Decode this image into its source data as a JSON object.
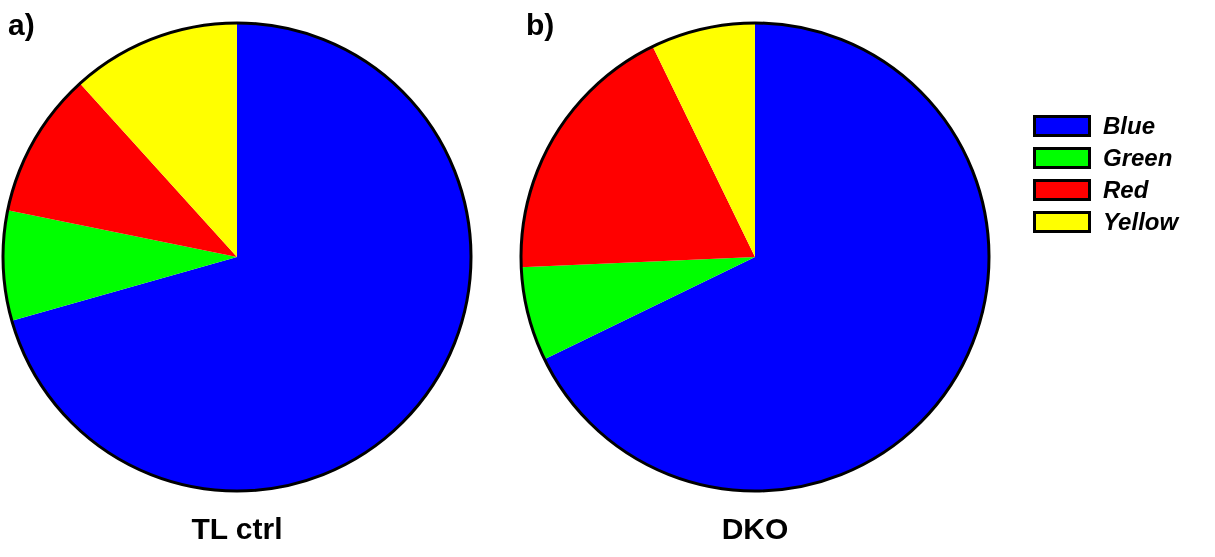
{
  "chart_data": [
    {
      "type": "pie",
      "title": "TL ctrl",
      "annotations": [
        "a)"
      ],
      "categories": [
        null,
        null,
        null,
        null
      ],
      "values": [
        70.6,
        7.6,
        10.1,
        11.7
      ],
      "colors": [
        "#0000ff",
        "#00ff00",
        "#ff0000",
        "#ffff00"
      ],
      "legend": false
    },
    {
      "type": "pie",
      "title": "DKO",
      "annotations": [
        "b)"
      ],
      "categories": [
        "Blue",
        "Green",
        "Red",
        "Yellow"
      ],
      "values": [
        67.8,
        6.5,
        18.5,
        7.2
      ],
      "colors": [
        "#0000ff",
        "#00ff00",
        "#ff0000",
        "#ffff00"
      ],
      "legend": "right"
    }
  ]
}
